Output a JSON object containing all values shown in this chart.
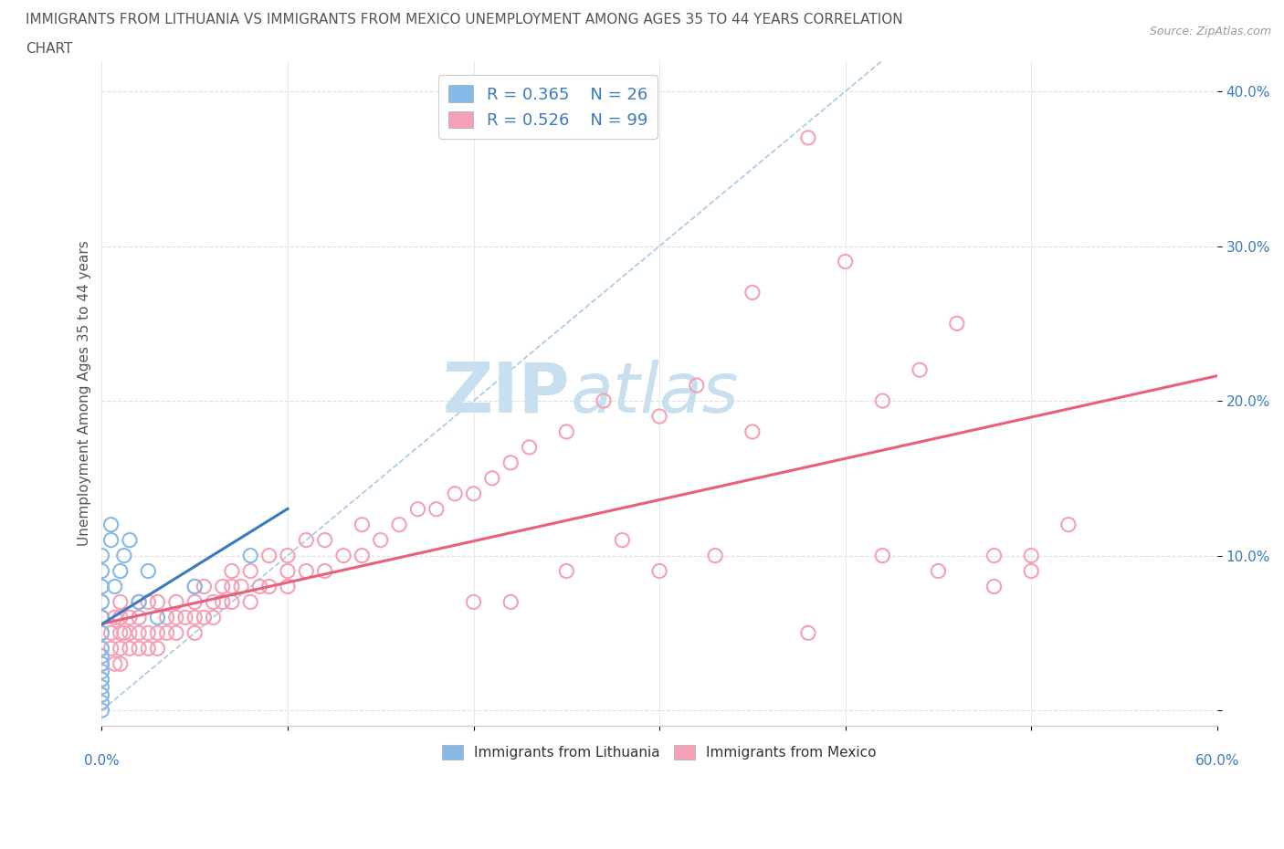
{
  "title_line1": "IMMIGRANTS FROM LITHUANIA VS IMMIGRANTS FROM MEXICO UNEMPLOYMENT AMONG AGES 35 TO 44 YEARS CORRELATION",
  "title_line2": "CHART",
  "source": "Source: ZipAtlas.com",
  "ylabel": "Unemployment Among Ages 35 to 44 years",
  "xlim": [
    0.0,
    0.6
  ],
  "ylim": [
    -0.01,
    0.42
  ],
  "legend_R_lithuania": "R = 0.365",
  "legend_N_lithuania": "N = 26",
  "legend_R_mexico": "R = 0.526",
  "legend_N_mexico": "N = 99",
  "color_lithuania": "#85b9e8",
  "color_mexico": "#f5a0b5",
  "color_trendline_lithuania": "#3a7abf",
  "color_trendline_mexico": "#e8607a",
  "color_diagonal": "#a8c8e8",
  "watermark_zip": "ZIP",
  "watermark_atlas": "atlas",
  "watermark_color": "#c8dff0",
  "background_color": "#ffffff",
  "legend_R_color": "#3a7abf",
  "title_color": "#555555",
  "ytick_color": "#3a7abf",
  "grid_color": "#e0e0e0",
  "lithuania_x": [
    0.0,
    0.0,
    0.0,
    0.0,
    0.0,
    0.0,
    0.0,
    0.0,
    0.0,
    0.0,
    0.0,
    0.0,
    0.0,
    0.0,
    0.0,
    0.005,
    0.005,
    0.007,
    0.01,
    0.012,
    0.015,
    0.02,
    0.025,
    0.03,
    0.05,
    0.08
  ],
  "lithuania_y": [
    0.0,
    0.005,
    0.01,
    0.015,
    0.02,
    0.025,
    0.03,
    0.035,
    0.04,
    0.05,
    0.06,
    0.07,
    0.08,
    0.09,
    0.1,
    0.11,
    0.12,
    0.08,
    0.09,
    0.1,
    0.11,
    0.07,
    0.09,
    0.06,
    0.08,
    0.1
  ],
  "mexico_x": [
    0.0,
    0.0,
    0.0,
    0.0,
    0.0,
    0.0,
    0.0,
    0.005,
    0.005,
    0.007,
    0.007,
    0.01,
    0.01,
    0.01,
    0.01,
    0.01,
    0.012,
    0.015,
    0.015,
    0.015,
    0.02,
    0.02,
    0.02,
    0.02,
    0.025,
    0.025,
    0.025,
    0.03,
    0.03,
    0.03,
    0.035,
    0.035,
    0.04,
    0.04,
    0.04,
    0.045,
    0.05,
    0.05,
    0.05,
    0.05,
    0.055,
    0.055,
    0.06,
    0.06,
    0.065,
    0.065,
    0.07,
    0.07,
    0.07,
    0.075,
    0.08,
    0.08,
    0.085,
    0.09,
    0.09,
    0.1,
    0.1,
    0.1,
    0.11,
    0.11,
    0.12,
    0.12,
    0.13,
    0.14,
    0.14,
    0.15,
    0.16,
    0.17,
    0.18,
    0.19,
    0.2,
    0.21,
    0.22,
    0.23,
    0.25,
    0.27,
    0.3,
    0.32,
    0.35,
    0.38,
    0.4,
    0.42,
    0.44,
    0.46,
    0.48,
    0.5,
    0.52,
    0.5,
    0.48,
    0.45,
    0.42,
    0.38,
    0.35,
    0.33,
    0.3,
    0.28,
    0.25,
    0.22,
    0.2
  ],
  "mexico_y": [
    0.01,
    0.02,
    0.03,
    0.04,
    0.05,
    0.06,
    0.07,
    0.04,
    0.05,
    0.03,
    0.06,
    0.03,
    0.04,
    0.05,
    0.06,
    0.07,
    0.05,
    0.04,
    0.05,
    0.06,
    0.04,
    0.05,
    0.06,
    0.07,
    0.04,
    0.05,
    0.07,
    0.04,
    0.05,
    0.07,
    0.05,
    0.06,
    0.05,
    0.06,
    0.07,
    0.06,
    0.05,
    0.06,
    0.07,
    0.08,
    0.06,
    0.08,
    0.06,
    0.07,
    0.07,
    0.08,
    0.07,
    0.08,
    0.09,
    0.08,
    0.07,
    0.09,
    0.08,
    0.08,
    0.1,
    0.08,
    0.09,
    0.1,
    0.09,
    0.11,
    0.09,
    0.11,
    0.1,
    0.1,
    0.12,
    0.11,
    0.12,
    0.13,
    0.13,
    0.14,
    0.14,
    0.15,
    0.16,
    0.17,
    0.18,
    0.2,
    0.19,
    0.21,
    0.27,
    0.37,
    0.29,
    0.2,
    0.22,
    0.25,
    0.1,
    0.1,
    0.12,
    0.09,
    0.08,
    0.09,
    0.1,
    0.05,
    0.18,
    0.1,
    0.09,
    0.11,
    0.09,
    0.07,
    0.07
  ]
}
